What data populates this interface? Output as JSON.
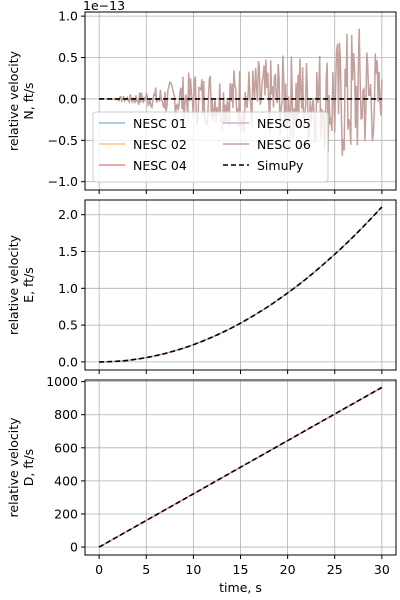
{
  "chart_data": [
    {
      "type": "line",
      "ylabel_lines": [
        "relative velocity",
        "N, ft/s"
      ],
      "y_offset_text": "1e−13",
      "ylim": [
        -1.1,
        1.05
      ],
      "yticks": [
        -1.0,
        -0.5,
        0.0,
        0.5,
        1.0
      ],
      "ytick_labels": [
        "−1.0",
        "−0.5",
        "0.0",
        "0.5",
        "1.0"
      ],
      "xlim": [
        -1.5,
        31.5
      ],
      "xticks": [
        0,
        5,
        10,
        15,
        20,
        25,
        30
      ],
      "grid": true,
      "legend": {
        "placement": "lower-left",
        "columns": 2,
        "entries": [
          {
            "label": "NESC 01",
            "color": "#8ebfdd",
            "style": "solid"
          },
          {
            "label": "NESC 02",
            "color": "#fbc58a",
            "style": "solid"
          },
          {
            "label": "NESC 04",
            "color": "#e68a8a",
            "style": "solid"
          },
          {
            "label": "NESC 05",
            "color": "#cab3d9",
            "style": "solid"
          },
          {
            "label": "NESC 06",
            "color": "#c4a09c",
            "style": "solid"
          },
          {
            "label": "SimuPy",
            "color": "#000000",
            "style": "dashed"
          }
        ]
      },
      "series": [
        {
          "name": "NESC 06",
          "color": "#c4a09c",
          "x": [
            0,
            1,
            2,
            3,
            4,
            5,
            6,
            7,
            8,
            9,
            10,
            11,
            12,
            13,
            14,
            15,
            16,
            17,
            18,
            19,
            20,
            21,
            22,
            23,
            24,
            25,
            26,
            27,
            28,
            29,
            30
          ],
          "y_env": [
            0.0,
            0.0,
            0.02,
            0.05,
            0.08,
            0.12,
            0.15,
            0.18,
            0.25,
            0.3,
            0.35,
            0.32,
            0.4,
            0.3,
            0.38,
            0.45,
            0.4,
            0.5,
            0.48,
            0.55,
            0.52,
            0.62,
            0.55,
            0.68,
            0.6,
            0.72,
            0.8,
            0.95,
            0.9,
            0.8,
            0.3
          ],
          "y_low": [
            0.0,
            0.0,
            -0.02,
            -0.05,
            -0.08,
            -0.1,
            -0.12,
            -0.2,
            -0.22,
            -0.28,
            -0.3,
            -0.35,
            -0.3,
            -0.38,
            -0.32,
            -0.42,
            -0.45,
            -0.4,
            -0.5,
            -0.45,
            -0.55,
            -0.5,
            -0.6,
            -0.55,
            -0.65,
            -0.75,
            -0.85,
            -0.8,
            -0.7,
            -0.62,
            -0.2
          ]
        },
        {
          "name": "SimuPy",
          "color": "#000000",
          "dashed": true,
          "x": [
            0,
            30
          ],
          "y": [
            0,
            0
          ]
        }
      ]
    },
    {
      "type": "line",
      "ylabel_lines": [
        "relative velocity",
        "E, ft/s"
      ],
      "ylim": [
        -0.11,
        2.2
      ],
      "yticks": [
        0.0,
        0.5,
        1.0,
        1.5,
        2.0
      ],
      "ytick_labels": [
        "0.0",
        "0.5",
        "1.0",
        "1.5",
        "2.0"
      ],
      "xlim": [
        -1.5,
        31.5
      ],
      "xticks": [
        0,
        5,
        10,
        15,
        20,
        25,
        30
      ],
      "grid": true,
      "series": [
        {
          "name": "NESC 06",
          "color": "#c4a09c",
          "quadratic_coef": 0.00234,
          "x_range": [
            0,
            30
          ]
        },
        {
          "name": "SimuPy",
          "color": "#000000",
          "dashed": true,
          "quadratic_coef": 0.00234,
          "x_range": [
            0,
            30
          ]
        }
      ]
    },
    {
      "type": "line",
      "ylabel_lines": [
        "relative velocity",
        "D, ft/s"
      ],
      "xlabel": "time, s",
      "ylim": [
        -48,
        1010
      ],
      "yticks": [
        0,
        200,
        400,
        600,
        800,
        1000
      ],
      "ytick_labels": [
        "0",
        "200",
        "400",
        "600",
        "800",
        "1000"
      ],
      "xlim": [
        -1.5,
        31.5
      ],
      "xticks": [
        0,
        5,
        10,
        15,
        20,
        25,
        30
      ],
      "xtick_labels": [
        "0",
        "5",
        "10",
        "15",
        "20",
        "25",
        "30"
      ],
      "grid": true,
      "series": [
        {
          "name": "NESC 04",
          "color": "#e68a8a",
          "x": [
            0,
            30
          ],
          "y": [
            0,
            965
          ]
        },
        {
          "name": "SimuPy",
          "color": "#000000",
          "dashed": true,
          "x": [
            0,
            30
          ],
          "y": [
            0,
            965
          ]
        }
      ]
    }
  ]
}
